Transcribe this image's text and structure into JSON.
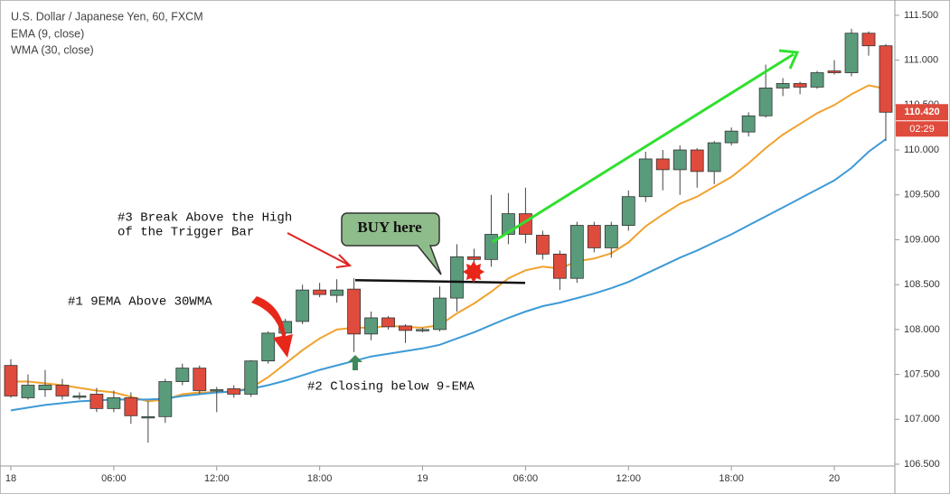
{
  "chart_data": {
    "type": "candlestick",
    "title": "U.S. Dollar / Japanese Yen, 60, FXCM",
    "indicator_labels": [
      "EMA (9, close)",
      "WMA (30, close)"
    ],
    "categories": [
      "18",
      null,
      null,
      null,
      null,
      null,
      "06:00",
      null,
      null,
      null,
      null,
      null,
      "12:00",
      null,
      null,
      null,
      null,
      null,
      "18:00",
      null,
      null,
      null,
      null,
      null,
      "19",
      null,
      null,
      null,
      null,
      null,
      "06:00",
      null,
      null,
      null,
      null,
      null,
      "12:00",
      null,
      null,
      null,
      null,
      null,
      "18:00",
      null,
      null,
      null,
      null,
      null,
      "20",
      null,
      null,
      null
    ],
    "open": [
      107.6,
      107.24,
      107.33,
      107.38,
      107.26,
      107.28,
      107.12,
      107.24,
      107.03,
      107.03,
      107.42,
      107.57,
      107.32,
      107.34,
      107.28,
      107.65,
      107.96,
      108.09,
      108.44,
      108.38,
      108.45,
      107.95,
      108.13,
      108.04,
      107.99,
      108.0,
      108.35,
      108.81,
      108.78,
      109.06,
      109.29,
      109.05,
      108.84,
      108.57,
      109.16,
      108.91,
      109.16,
      109.48,
      109.9,
      109.78,
      110.0,
      109.76,
      110.08,
      110.2,
      110.38,
      110.69,
      110.74,
      110.7,
      110.88,
      110.86,
      111.3,
      111.16
    ],
    "high": [
      107.67,
      107.5,
      107.55,
      107.45,
      107.3,
      107.35,
      107.32,
      107.3,
      107.2,
      107.45,
      107.62,
      107.6,
      107.36,
      107.38,
      107.66,
      107.98,
      108.12,
      108.5,
      108.52,
      108.56,
      108.57,
      108.2,
      108.15,
      108.06,
      108.02,
      108.48,
      108.95,
      108.9,
      109.5,
      109.52,
      109.58,
      109.1,
      108.88,
      109.2,
      109.2,
      109.2,
      109.55,
      109.98,
      110.0,
      110.05,
      110.02,
      110.1,
      110.25,
      110.42,
      110.95,
      110.8,
      110.76,
      110.88,
      111.0,
      111.35,
      111.32,
      111.18
    ],
    "low": [
      107.24,
      107.22,
      107.25,
      107.22,
      107.22,
      107.08,
      107.08,
      106.95,
      106.74,
      106.96,
      107.38,
      107.28,
      107.08,
      107.24,
      107.25,
      107.62,
      107.94,
      108.06,
      108.36,
      108.3,
      107.75,
      107.88,
      108.0,
      107.85,
      107.97,
      107.98,
      108.2,
      108.6,
      108.7,
      108.95,
      108.96,
      108.78,
      108.44,
      108.52,
      108.86,
      108.8,
      109.1,
      109.42,
      109.55,
      109.5,
      109.58,
      109.62,
      110.05,
      110.15,
      110.36,
      110.6,
      110.62,
      110.68,
      110.84,
      110.82,
      111.05,
      110.1
    ],
    "close": [
      107.26,
      107.38,
      107.38,
      107.26,
      107.26,
      107.12,
      107.24,
      107.04,
      107.03,
      107.42,
      107.57,
      107.32,
      107.33,
      107.28,
      107.65,
      107.96,
      108.09,
      108.44,
      108.39,
      108.44,
      107.95,
      108.13,
      108.03,
      107.99,
      108.0,
      108.35,
      108.81,
      108.78,
      109.06,
      109.29,
      109.06,
      108.84,
      108.57,
      109.16,
      108.91,
      109.16,
      109.48,
      109.9,
      109.78,
      110.0,
      109.76,
      110.08,
      110.21,
      110.38,
      110.69,
      110.74,
      110.7,
      110.86,
      110.86,
      111.3,
      111.16,
      110.42
    ],
    "up_color": "#5a9b7b",
    "down_color": "#df4b3c",
    "lines": [
      {
        "name": "EMA (9, close)",
        "color": "#f0a22e",
        "values": [
          107.42,
          107.42,
          107.4,
          107.38,
          107.35,
          107.32,
          107.3,
          107.25,
          107.2,
          107.22,
          107.28,
          107.3,
          107.3,
          107.31,
          107.35,
          107.47,
          107.62,
          107.77,
          107.9,
          108.0,
          108.02,
          108.02,
          108.04,
          108.03,
          108.02,
          108.05,
          108.18,
          108.29,
          108.42,
          108.57,
          108.66,
          108.7,
          108.68,
          108.76,
          108.79,
          108.85,
          108.97,
          109.15,
          109.28,
          109.4,
          109.48,
          109.59,
          109.7,
          109.85,
          110.02,
          110.17,
          110.29,
          110.41,
          110.5,
          110.62,
          110.72,
          110.68
        ]
      },
      {
        "name": "WMA (30, close)",
        "color": "#3d9ad6",
        "values": [
          107.1,
          107.13,
          107.16,
          107.18,
          107.2,
          107.21,
          107.22,
          107.22,
          107.22,
          107.23,
          107.26,
          107.28,
          107.3,
          107.31,
          107.34,
          107.38,
          107.43,
          107.49,
          107.55,
          107.6,
          107.65,
          107.7,
          107.73,
          107.76,
          107.79,
          107.83,
          107.9,
          107.97,
          108.05,
          108.13,
          108.2,
          108.26,
          108.3,
          108.35,
          108.4,
          108.46,
          108.53,
          108.62,
          108.71,
          108.8,
          108.88,
          108.97,
          109.06,
          109.16,
          109.26,
          109.36,
          109.46,
          109.56,
          109.66,
          109.8,
          109.98,
          110.12
        ]
      }
    ],
    "ylim": [
      106.48,
      111.67
    ],
    "yticks": [
      {
        "value": 106.5,
        "label": "106.500"
      },
      {
        "value": 107,
        "label": "107.000"
      },
      {
        "value": 107.5,
        "label": "107.500"
      },
      {
        "value": 108,
        "label": "108.000"
      },
      {
        "value": 108.5,
        "label": "108.500"
      },
      {
        "value": 109,
        "label": "109.000"
      },
      {
        "value": 109.5,
        "label": "109.500"
      },
      {
        "value": 110,
        "label": "110.000"
      },
      {
        "value": 110.5,
        "label": "110.500"
      },
      {
        "value": 111,
        "label": "111.000"
      },
      {
        "value": 111.5,
        "label": "111.500"
      }
    ],
    "last_price_label": "110.420",
    "countdown": "02:29",
    "trigger_high": 108.55,
    "annotations": {
      "break": [
        "#3 Break Above the High",
        "of the Trigger Bar"
      ],
      "buy": "BUY here",
      "ema_above": "#1 9EMA Above 30WMA",
      "closing": "#2 Closing below 9-EMA"
    }
  }
}
